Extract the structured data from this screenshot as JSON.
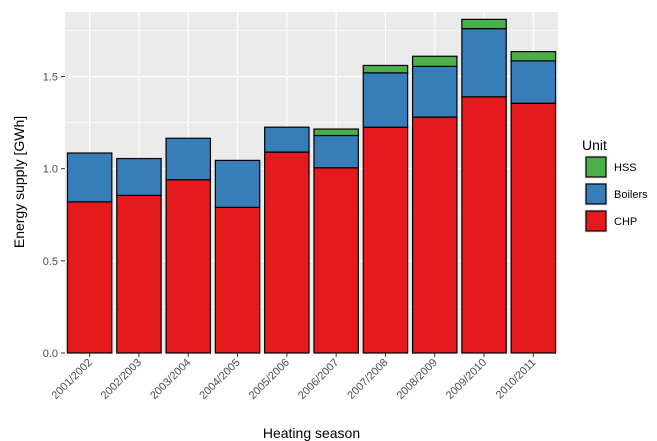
{
  "chart_data": {
    "type": "bar",
    "stacked": true,
    "xlabel": "Heating season",
    "ylabel": "Energy supply [GWh]",
    "ylim": [
      0,
      1.85
    ],
    "yticks": [
      0.0,
      0.5,
      1.0,
      1.5
    ],
    "ytick_labels": [
      "0.0",
      "0.5",
      "1.0",
      "1.5"
    ],
    "grid": true,
    "legend_position": "right",
    "legend_title": "Unit",
    "categories": [
      "2001/2002",
      "2002/2003",
      "2003/2004",
      "2004/2005",
      "2005/2006",
      "2006/2007",
      "2007/2008",
      "2008/2009",
      "2009/2010",
      "2010/2011"
    ],
    "series": [
      {
        "name": "CHP",
        "color": "#e41a1c",
        "values": [
          0.82,
          0.855,
          0.94,
          0.79,
          1.09,
          1.005,
          1.225,
          1.28,
          1.39,
          1.355
        ]
      },
      {
        "name": "Boilers",
        "color": "#377eb8",
        "values": [
          0.265,
          0.2,
          0.225,
          0.255,
          0.135,
          0.175,
          0.295,
          0.275,
          0.37,
          0.23
        ]
      },
      {
        "name": "HSS",
        "color": "#4daf4a",
        "values": [
          0,
          0,
          0,
          0,
          0,
          0.035,
          0.04,
          0.055,
          0.05,
          0.05
        ]
      }
    ],
    "legend_order": [
      "HSS",
      "Boilers",
      "CHP"
    ]
  }
}
